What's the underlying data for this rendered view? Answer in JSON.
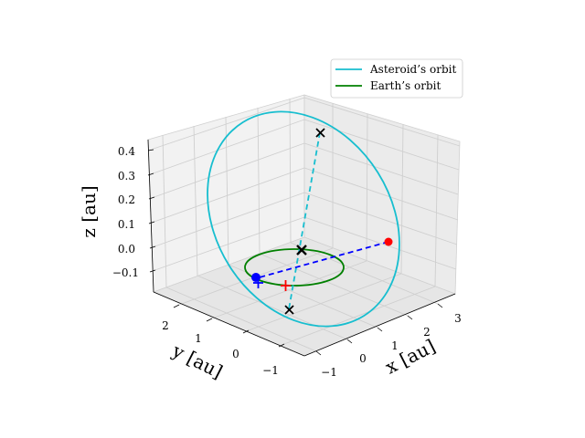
{
  "chart_data": {
    "type": "line3d",
    "axes": {
      "x": {
        "label": "x [au]",
        "ticks": [
          "−1",
          "0",
          "1",
          "2",
          "3"
        ]
      },
      "y": {
        "label": "y [au]",
        "ticks": [
          "−1",
          "0",
          "1",
          "2"
        ]
      },
      "z": {
        "label": "z [au]",
        "ticks": [
          "−0.1",
          "0.0",
          "0.1",
          "0.2",
          "0.3",
          "0.4"
        ]
      },
      "grid": true,
      "pane_color": "#f2f2f2"
    },
    "legend": {
      "placement": "upper right",
      "entries": [
        {
          "label": "Asteroid’s orbit",
          "color": "#17becf"
        },
        {
          "label": "Earth’s orbit",
          "color": "#008000"
        }
      ]
    },
    "series": [
      {
        "name": "Asteroid’s orbit",
        "color": "#17becf",
        "shape": "ellipse",
        "center": [
          0.9,
          0.6,
          0.13
        ],
        "semi_axis_a": [
          1.6,
          -0.6,
          -0.2
        ],
        "semi_axis_b": [
          0.3,
          1.2,
          0.29
        ]
      },
      {
        "name": "Earth’s orbit",
        "color": "#008000",
        "shape": "circle",
        "center": [
          0,
          0,
          0
        ],
        "radius": 1.0
      }
    ],
    "points": [
      {
        "marker": "x",
        "color": "#000000",
        "x": 0.0,
        "y": 0.0,
        "z": 0.0
      },
      {
        "marker": "x",
        "color": "#000000",
        "x": 1.2,
        "y": 1.8,
        "z": 0.42
      },
      {
        "marker": "x",
        "color": "#000000",
        "x": -0.8,
        "y": -1.2,
        "z": -0.15
      },
      {
        "marker": "o",
        "color": "#ff0000",
        "x": 2.6,
        "y": 0.2,
        "z": 0.02
      },
      {
        "marker": "o",
        "color": "#0000ff",
        "x": -0.1,
        "y": 1.0,
        "z": 0.0
      },
      {
        "marker": "+",
        "color": "#ff0000",
        "x": -0.4,
        "y": -0.5,
        "z": -0.04
      },
      {
        "marker": "+",
        "color": "#0000ff",
        "x": -0.05,
        "y": 1.05,
        "z": -0.01
      }
    ],
    "lines": [
      {
        "style": "dashed",
        "color": "#17becf",
        "from": [
          1.2,
          1.8,
          0.42
        ],
        "to": [
          -0.8,
          -1.2,
          -0.15
        ]
      },
      {
        "style": "dashed",
        "color": "#0000ff",
        "from": [
          2.6,
          0.2,
          0.02
        ],
        "to": [
          -0.1,
          1.0,
          0.0
        ]
      }
    ]
  }
}
